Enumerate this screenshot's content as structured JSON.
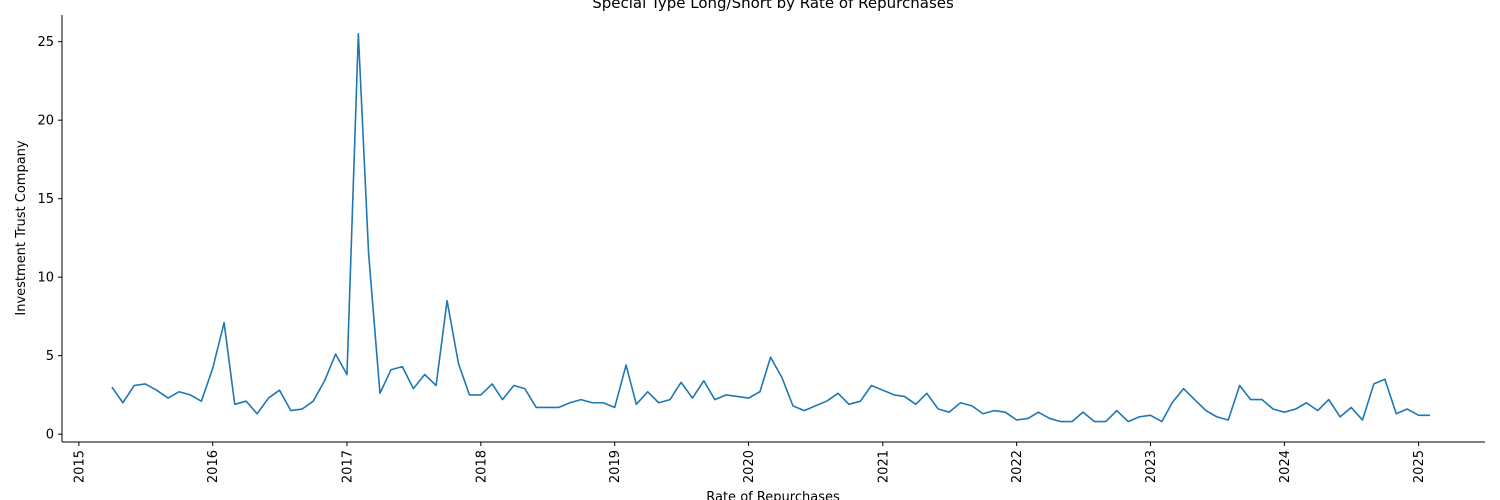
{
  "chart_data": {
    "type": "line",
    "title": "Special Type Long/Short by Rate of Repurchases",
    "xlabel": "Rate of Repurchases",
    "ylabel": "Investment Trust Company",
    "x_ticks": [
      "2015",
      "2016",
      "2017",
      "2018",
      "2019",
      "2020",
      "2021",
      "2022",
      "2023",
      "2024",
      "2025"
    ],
    "y_ticks": [
      0,
      5,
      10,
      15,
      20,
      25
    ],
    "xlim": [
      "2014-11-16",
      "2025-07-01"
    ],
    "ylim": [
      -0.5,
      26.7
    ],
    "grid": false,
    "color": "#1f77b4",
    "series": [
      {
        "x": [
          "2015-04-01",
          "2015-05-01",
          "2015-06-01",
          "2015-07-01",
          "2015-08-01",
          "2015-09-01",
          "2015-10-01",
          "2015-11-01",
          "2015-12-01",
          "2016-01-01",
          "2016-02-01",
          "2016-03-01",
          "2016-04-01",
          "2016-05-01",
          "2016-06-01",
          "2016-07-01",
          "2016-08-01",
          "2016-09-01",
          "2016-10-01",
          "2016-11-01",
          "2016-12-01",
          "2017-01-01",
          "2017-02-01",
          "2017-03-01",
          "2017-04-01",
          "2017-05-01",
          "2017-06-01",
          "2017-07-01",
          "2017-08-01",
          "2017-09-01",
          "2017-10-01",
          "2017-11-01",
          "2017-12-01",
          "2018-01-01",
          "2018-02-01",
          "2018-03-01",
          "2018-04-01",
          "2018-05-01",
          "2018-06-01",
          "2018-07-01",
          "2018-08-01",
          "2018-09-01",
          "2018-10-01",
          "2018-11-01",
          "2018-12-01",
          "2019-01-01",
          "2019-02-01",
          "2019-03-01",
          "2019-04-01",
          "2019-05-01",
          "2019-06-01",
          "2019-07-01",
          "2019-08-01",
          "2019-09-01",
          "2019-10-01",
          "2019-11-01",
          "2019-12-01",
          "2020-01-01",
          "2020-02-01",
          "2020-03-01",
          "2020-04-01",
          "2020-05-01",
          "2020-06-01",
          "2020-07-01",
          "2020-08-01",
          "2020-09-01",
          "2020-10-01",
          "2020-11-01",
          "2020-12-01",
          "2021-01-01",
          "2021-02-01",
          "2021-03-01",
          "2021-04-01",
          "2021-05-01",
          "2021-06-01",
          "2021-07-01",
          "2021-08-01",
          "2021-09-01",
          "2021-10-01",
          "2021-11-01",
          "2021-12-01",
          "2022-01-01",
          "2022-02-01",
          "2022-03-01",
          "2022-04-01",
          "2022-05-01",
          "2022-06-01",
          "2022-07-01",
          "2022-08-01",
          "2022-09-01",
          "2022-10-01",
          "2022-11-01",
          "2022-12-01",
          "2023-01-01",
          "2023-02-01",
          "2023-03-01",
          "2023-04-01",
          "2023-05-01",
          "2023-06-01",
          "2023-07-01",
          "2023-08-01",
          "2023-09-01",
          "2023-10-01",
          "2023-11-01",
          "2023-12-01",
          "2024-01-01",
          "2024-02-01",
          "2024-03-01",
          "2024-04-01",
          "2024-05-01",
          "2024-06-01",
          "2024-07-01",
          "2024-08-01",
          "2024-09-01",
          "2024-10-01",
          "2024-11-01",
          "2024-12-01",
          "2025-01-01",
          "2025-02-01"
        ],
        "y": [
          3.0,
          2.0,
          3.1,
          3.2,
          2.8,
          2.3,
          2.7,
          2.5,
          2.1,
          4.2,
          7.1,
          1.9,
          2.1,
          1.3,
          2.3,
          2.8,
          1.5,
          1.6,
          2.1,
          3.4,
          5.1,
          3.8,
          25.5,
          11.5,
          2.6,
          4.1,
          4.3,
          2.9,
          3.8,
          3.1,
          8.5,
          4.5,
          2.5,
          2.5,
          3.2,
          2.2,
          3.1,
          2.9,
          1.7,
          1.7,
          1.7,
          2.0,
          2.2,
          2.0,
          2.0,
          1.7,
          4.4,
          1.9,
          2.7,
          2.0,
          2.2,
          3.3,
          2.3,
          3.4,
          2.2,
          2.5,
          2.4,
          2.3,
          2.7,
          4.9,
          3.6,
          1.8,
          1.5,
          1.8,
          2.1,
          2.6,
          1.9,
          2.1,
          3.1,
          2.8,
          2.5,
          2.4,
          1.9,
          2.6,
          1.6,
          1.4,
          2.0,
          1.8,
          1.3,
          1.5,
          1.4,
          0.9,
          1.0,
          1.4,
          1.0,
          0.8,
          0.8,
          1.4,
          0.8,
          0.8,
          1.5,
          0.8,
          1.1,
          1.2,
          0.8,
          2.0,
          2.9,
          2.2,
          1.5,
          1.1,
          0.9,
          3.1,
          2.2,
          2.2,
          1.6,
          1.4,
          1.6,
          2.0,
          1.5,
          2.2,
          1.1,
          1.7,
          0.9,
          3.2,
          3.5,
          1.3,
          1.6,
          1.2,
          1.2
        ]
      }
    ]
  }
}
